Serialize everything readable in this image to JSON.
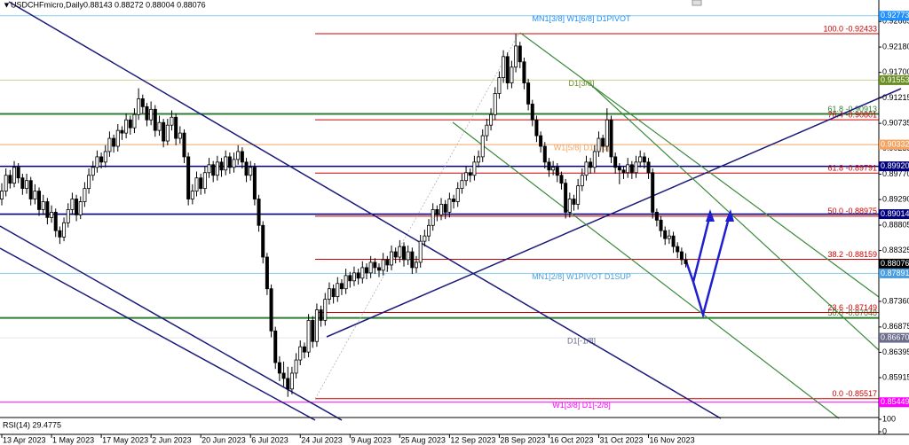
{
  "chart_data": {
    "type": "candlestick",
    "title": "USDCHFmicro,Daily",
    "quote": "0.88143 0.88272 0.88004 0.88076",
    "up_color": "#ffffff",
    "down_color": "#000000",
    "outline_color": "#000000",
    "xlim": [
      -0.43,
      211.56
    ],
    "xticks": [
      {
        "value": 0,
        "label": "13 Apr 2023"
      },
      {
        "value": 12,
        "label": "1 May 2023"
      },
      {
        "value": 24,
        "label": "17 May 2023"
      },
      {
        "value": 36,
        "label": "2 Jun 2023"
      },
      {
        "value": 48,
        "label": "20 Jun 2023"
      },
      {
        "value": 60,
        "label": "6 Jul 2023"
      },
      {
        "value": 72,
        "label": "24 Jul 2023"
      },
      {
        "value": 84,
        "label": "9 Aug 2023"
      },
      {
        "value": 96,
        "label": "25 Aug 2023"
      },
      {
        "value": 108,
        "label": "12 Sep 2023"
      },
      {
        "value": 120,
        "label": "28 Sep 2023"
      },
      {
        "value": 132,
        "label": "16 Oct 2023"
      },
      {
        "value": 144,
        "label": "31 Oct 2023"
      },
      {
        "value": 156,
        "label": "16 Nov 2023"
      }
    ],
    "ylim": [
      0.85176,
      0.93072
    ],
    "yticks": [
      0.92665,
      {
        "value": 0.9218,
        "label": "0.92180"
      },
      {
        "value": 0.917,
        "label": "0.91700"
      },
      0.91215,
      0.90735,
      0.90255,
      {
        "value": 0.8977,
        "label": "0.89770"
      },
      {
        "value": 0.8929,
        "label": "0.89290"
      },
      0.88805,
      0.88325,
      {
        "value": 0.8784,
        "label": "0.87840"
      },
      {
        "value": 0.8736,
        "label": "0.87360"
      },
      0.86875,
      0.86395,
      0.85915
    ],
    "ohlc": [
      [
        0.893,
        0.896,
        0.8918,
        0.8945
      ],
      [
        0.8945,
        0.8988,
        0.8935,
        0.8975
      ],
      [
        0.8975,
        0.8985,
        0.895,
        0.896
      ],
      [
        0.896,
        0.9002,
        0.8952,
        0.899
      ],
      [
        0.899,
        0.8998,
        0.896,
        0.897
      ],
      [
        0.897,
        0.8978,
        0.8938,
        0.895
      ],
      [
        0.895,
        0.8978,
        0.894,
        0.8965
      ],
      [
        0.8965,
        0.8972,
        0.8918,
        0.893
      ],
      [
        0.893,
        0.8958,
        0.892,
        0.8945
      ],
      [
        0.8945,
        0.8952,
        0.8898,
        0.891
      ],
      [
        0.891,
        0.8938,
        0.89,
        0.8925
      ],
      [
        0.8925,
        0.8932,
        0.8882,
        0.8895
      ],
      [
        0.8895,
        0.8918,
        0.8885,
        0.8905
      ],
      [
        0.8905,
        0.8912,
        0.8858,
        0.887
      ],
      [
        0.887,
        0.8878,
        0.8845,
        0.8858
      ],
      [
        0.8858,
        0.8895,
        0.885,
        0.8885
      ],
      [
        0.8885,
        0.8922,
        0.8876,
        0.891
      ],
      [
        0.891,
        0.8942,
        0.89,
        0.893
      ],
      [
        0.893,
        0.8938,
        0.8888,
        0.89
      ],
      [
        0.89,
        0.8935,
        0.8892,
        0.8925
      ],
      [
        0.8925,
        0.8962,
        0.8915,
        0.895
      ],
      [
        0.895,
        0.8988,
        0.894,
        0.8975
      ],
      [
        0.8975,
        0.9002,
        0.8965,
        0.899
      ],
      [
        0.899,
        0.9022,
        0.898,
        0.901
      ],
      [
        0.901,
        0.9018,
        0.8988,
        0.9
      ],
      [
        0.9,
        0.9032,
        0.899,
        0.902
      ],
      [
        0.902,
        0.9058,
        0.901,
        0.9045
      ],
      [
        0.9045,
        0.9052,
        0.9018,
        0.903
      ],
      [
        0.903,
        0.9072,
        0.902,
        0.906
      ],
      [
        0.906,
        0.9068,
        0.9042,
        0.9055
      ],
      [
        0.9055,
        0.9092,
        0.9045,
        0.908
      ],
      [
        0.908,
        0.9088,
        0.9052,
        0.9065
      ],
      [
        0.9065,
        0.9102,
        0.9055,
        0.909
      ],
      [
        0.909,
        0.914,
        0.908,
        0.912
      ],
      [
        0.912,
        0.9128,
        0.9092,
        0.9105
      ],
      [
        0.9105,
        0.9112,
        0.9068,
        0.908
      ],
      [
        0.908,
        0.9115,
        0.907,
        0.91
      ],
      [
        0.91,
        0.9108,
        0.9048,
        0.906
      ],
      [
        0.906,
        0.9088,
        0.905,
        0.9075
      ],
      [
        0.9075,
        0.9082,
        0.9028,
        0.904
      ],
      [
        0.904,
        0.9082,
        0.9032,
        0.907
      ],
      [
        0.907,
        0.9098,
        0.906,
        0.9085
      ],
      [
        0.9085,
        0.9092,
        0.9032,
        0.9045
      ],
      [
        0.9045,
        0.9068,
        0.9035,
        0.9055
      ],
      [
        0.9055,
        0.9062,
        0.8998,
        0.901
      ],
      [
        0.901,
        0.9018,
        0.8918,
        0.893
      ],
      [
        0.893,
        0.8958,
        0.892,
        0.8945
      ],
      [
        0.8945,
        0.8982,
        0.8935,
        0.897
      ],
      [
        0.897,
        0.8978,
        0.8938,
        0.895
      ],
      [
        0.895,
        0.8992,
        0.894,
        0.898
      ],
      [
        0.898,
        0.9008,
        0.897,
        0.8995
      ],
      [
        0.8995,
        0.9002,
        0.8962,
        0.8975
      ],
      [
        0.8975,
        0.9012,
        0.8965,
        0.9
      ],
      [
        0.9,
        0.9008,
        0.8972,
        0.8985
      ],
      [
        0.8985,
        0.9022,
        0.8975,
        0.901
      ],
      [
        0.901,
        0.9018,
        0.8978,
        0.899
      ],
      [
        0.899,
        0.9018,
        0.898,
        0.9005
      ],
      [
        0.9005,
        0.9032,
        0.8995,
        0.902
      ],
      [
        0.902,
        0.9028,
        0.8988,
        0.9
      ],
      [
        0.9,
        0.9008,
        0.8962,
        0.8975
      ],
      [
        0.8975,
        0.9002,
        0.8965,
        0.899
      ],
      [
        0.899,
        0.8998,
        0.8918,
        0.893
      ],
      [
        0.893,
        0.8938,
        0.8868,
        0.888
      ],
      [
        0.888,
        0.8888,
        0.8808,
        0.882
      ],
      [
        0.882,
        0.8828,
        0.8748,
        0.876
      ],
      [
        0.876,
        0.8768,
        0.8668,
        0.868
      ],
      [
        0.868,
        0.8688,
        0.8608,
        0.862
      ],
      [
        0.862,
        0.8632,
        0.8585,
        0.86
      ],
      [
        0.86,
        0.8622,
        0.8575,
        0.859
      ],
      [
        0.859,
        0.8612,
        0.8555,
        0.857
      ],
      [
        0.857,
        0.8612,
        0.856,
        0.86
      ],
      [
        0.86,
        0.8638,
        0.859,
        0.8625
      ],
      [
        0.8625,
        0.8662,
        0.8615,
        0.865
      ],
      [
        0.865,
        0.8658,
        0.8628,
        0.864
      ],
      [
        0.864,
        0.8712,
        0.863,
        0.87
      ],
      [
        0.87,
        0.8708,
        0.8648,
        0.866
      ],
      [
        0.866,
        0.8732,
        0.865,
        0.872
      ],
      [
        0.872,
        0.8728,
        0.8688,
        0.87
      ],
      [
        0.87,
        0.8752,
        0.869,
        0.874
      ],
      [
        0.874,
        0.8772,
        0.873,
        0.876
      ],
      [
        0.876,
        0.8768,
        0.8732,
        0.8745
      ],
      [
        0.8745,
        0.8782,
        0.8735,
        0.877
      ],
      [
        0.877,
        0.8778,
        0.8748,
        0.876
      ],
      [
        0.876,
        0.8798,
        0.875,
        0.8785
      ],
      [
        0.8785,
        0.8792,
        0.8762,
        0.8775
      ],
      [
        0.8775,
        0.8802,
        0.8765,
        0.879
      ],
      [
        0.879,
        0.8798,
        0.8768,
        0.878
      ],
      [
        0.878,
        0.8812,
        0.877,
        0.88
      ],
      [
        0.88,
        0.8808,
        0.8778,
        0.879
      ],
      [
        0.879,
        0.8822,
        0.878,
        0.881
      ],
      [
        0.881,
        0.8818,
        0.8788,
        0.88
      ],
      [
        0.88,
        0.8808,
        0.8782,
        0.8795
      ],
      [
        0.8795,
        0.8828,
        0.8785,
        0.8815
      ],
      [
        0.8815,
        0.8822,
        0.8792,
        0.8805
      ],
      [
        0.8805,
        0.8842,
        0.8795,
        0.883
      ],
      [
        0.883,
        0.8838,
        0.8808,
        0.882
      ],
      [
        0.882,
        0.8852,
        0.881,
        0.884
      ],
      [
        0.884,
        0.8848,
        0.8802,
        0.8815
      ],
      [
        0.8815,
        0.8842,
        0.8805,
        0.883
      ],
      [
        0.883,
        0.8838,
        0.8788,
        0.88
      ],
      [
        0.88,
        0.8822,
        0.879,
        0.881
      ],
      [
        0.881,
        0.8862,
        0.88,
        0.885
      ],
      [
        0.885,
        0.8872,
        0.884,
        0.886
      ],
      [
        0.886,
        0.8892,
        0.885,
        0.888
      ],
      [
        0.888,
        0.8922,
        0.887,
        0.891
      ],
      [
        0.891,
        0.8918,
        0.8888,
        0.89
      ],
      [
        0.89,
        0.8932,
        0.889,
        0.892
      ],
      [
        0.892,
        0.8928,
        0.8892,
        0.8905
      ],
      [
        0.8905,
        0.8942,
        0.8895,
        0.893
      ],
      [
        0.893,
        0.8938,
        0.8912,
        0.8925
      ],
      [
        0.8925,
        0.8962,
        0.8915,
        0.895
      ],
      [
        0.895,
        0.8978,
        0.894,
        0.8965
      ],
      [
        0.8965,
        0.8992,
        0.8955,
        0.898
      ],
      [
        0.898,
        0.8988,
        0.8962,
        0.8975
      ],
      [
        0.8975,
        0.9012,
        0.8965,
        0.9
      ],
      [
        0.9,
        0.9022,
        0.899,
        0.901
      ],
      [
        0.901,
        0.9062,
        0.9,
        0.905
      ],
      [
        0.905,
        0.9082,
        0.904,
        0.907
      ],
      [
        0.907,
        0.9102,
        0.906,
        0.909
      ],
      [
        0.909,
        0.9142,
        0.908,
        0.913
      ],
      [
        0.913,
        0.9172,
        0.912,
        0.916
      ],
      [
        0.916,
        0.9212,
        0.915,
        0.92
      ],
      [
        0.92,
        0.9208,
        0.9138,
        0.915
      ],
      [
        0.915,
        0.9192,
        0.914,
        0.918
      ],
      [
        0.918,
        0.9243,
        0.917,
        0.922
      ],
      [
        0.922,
        0.9228,
        0.9178,
        0.919
      ],
      [
        0.919,
        0.9198,
        0.9138,
        0.915
      ],
      [
        0.915,
        0.9158,
        0.9098,
        0.911
      ],
      [
        0.911,
        0.9118,
        0.9068,
        0.908
      ],
      [
        0.908,
        0.9088,
        0.9038,
        0.905
      ],
      [
        0.905,
        0.9058,
        0.9018,
        0.903
      ],
      [
        0.903,
        0.9038,
        0.8988,
        0.9
      ],
      [
        0.9,
        0.9008,
        0.8972,
        0.8985
      ],
      [
        0.8985,
        0.9002,
        0.8975,
        0.899
      ],
      [
        0.899,
        0.8998,
        0.8962,
        0.8975
      ],
      [
        0.8975,
        0.8982,
        0.8948,
        0.896
      ],
      [
        0.896,
        0.8968,
        0.8893,
        0.8905
      ],
      [
        0.8905,
        0.8942,
        0.8895,
        0.893
      ],
      [
        0.893,
        0.8938,
        0.8908,
        0.892
      ],
      [
        0.892,
        0.8968,
        0.891,
        0.8955
      ],
      [
        0.8955,
        0.8988,
        0.8945,
        0.8975
      ],
      [
        0.8975,
        0.9012,
        0.8965,
        0.9
      ],
      [
        0.9,
        0.9008,
        0.8978,
        0.899
      ],
      [
        0.899,
        0.9032,
        0.898,
        0.902
      ],
      [
        0.902,
        0.9058,
        0.901,
        0.9045
      ],
      [
        0.9045,
        0.9052,
        0.9018,
        0.903
      ],
      [
        0.903,
        0.9102,
        0.902,
        0.908
      ],
      [
        0.908,
        0.9088,
        0.8998,
        0.901
      ],
      [
        0.901,
        0.9018,
        0.8978,
        0.899
      ],
      [
        0.899,
        0.8998,
        0.8958,
        0.8985
      ],
      [
        0.8985,
        0.8992,
        0.8968,
        0.898
      ],
      [
        0.898,
        0.9008,
        0.897,
        0.8995
      ],
      [
        0.8995,
        0.9002,
        0.8968,
        0.898
      ],
      [
        0.898,
        0.9012,
        0.897,
        0.9
      ],
      [
        0.9,
        0.9022,
        0.899,
        0.901
      ],
      [
        0.901,
        0.9018,
        0.8988,
        0.9
      ],
      [
        0.9,
        0.9008,
        0.8968,
        0.898
      ],
      [
        0.898,
        0.8988,
        0.8893,
        0.8905
      ],
      [
        0.8905,
        0.8912,
        0.8878,
        0.889
      ],
      [
        0.889,
        0.8898,
        0.8858,
        0.887
      ],
      [
        0.887,
        0.8878,
        0.8843,
        0.8855
      ],
      [
        0.8855,
        0.8872,
        0.8845,
        0.886
      ],
      [
        0.886,
        0.8868,
        0.8828,
        0.884
      ],
      [
        0.884,
        0.8848,
        0.8818,
        0.883
      ],
      [
        0.883,
        0.8838,
        0.8805,
        0.8815
      ],
      [
        0.88143,
        0.88272,
        0.88004,
        0.88076
      ]
    ],
    "current_color": "#000000",
    "levels": [
      {
        "value": 0.92773,
        "color": "#87ceeb",
        "tag_color": "#1e90ff",
        "text": "MN1[3/8] W1[6/8] D1PIVOT"
      },
      {
        "value": 0.91553,
        "color": "#cfcf9a",
        "tag_color": "#6b8e23",
        "text": "D1[3/8]"
      },
      {
        "value": 0.90332,
        "color": "#f4a460",
        "tag_color": "#f4a460",
        "text": "W1[5/8] D1[2/8]"
      },
      {
        "value": 0.8992,
        "label": "0.89920",
        "color": "#000080",
        "tag_color": "#000080"
      },
      {
        "value": 0.89014,
        "color": "#000080",
        "tag_color": "#000080"
      },
      {
        "value": 0.87891,
        "color": "#87ceeb",
        "tag_color": "#4a9ee0",
        "text": "MN1[2/8] W1PIVOT D1SUP"
      },
      {
        "value": 0.8667,
        "label": "0.86670",
        "color": "#e4e4ee",
        "tag_color": "#6c6c8c",
        "text": "D1[-1/8]"
      },
      {
        "value": 0.85449,
        "color": "#ff00ff",
        "tag_color": "#ff00ff",
        "text": "W1[3/8] D1[-2/8]"
      }
    ],
    "fib_retracement": {
      "color": "#cc0000",
      "levels": [
        {
          "text": "100.0 -0.92433",
          "value": 0.92433
        },
        {
          "text": "76.4 -0.90801",
          "value": 0.90801
        },
        {
          "text": "61.8 -0.89791",
          "value": 0.89791
        },
        {
          "text": "50.0 -0.88975",
          "value": 0.88975
        },
        {
          "text": "38.2 -0.88159",
          "value": 0.88159
        },
        {
          "text": "23.6 -0.87149",
          "value": 0.87149
        },
        {
          "text": "0.0 -0.85517",
          "value": 0.85517
        }
      ]
    },
    "fib_extension": {
      "color": "#2e7d32",
      "levels": [
        {
          "text": "61.8 -0.90913",
          "value": 0.90913
        },
        {
          "text": "50.0 -0.87048",
          "value": 0.87048
        }
      ]
    },
    "rsi": {
      "label": "RSI(14) 29.4775",
      "ylim": [
        0,
        100
      ],
      "yticks": [
        100,
        0
      ]
    }
  }
}
